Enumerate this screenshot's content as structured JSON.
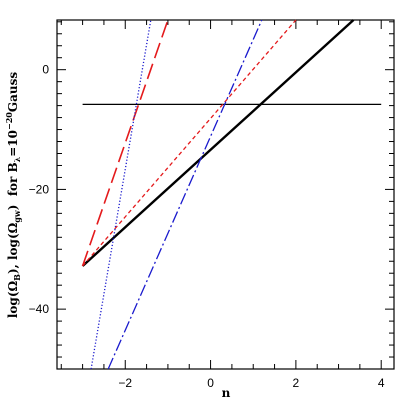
{
  "chart_data": {
    "type": "line",
    "title": "",
    "xlabel": "n",
    "ylabel_parts": {
      "part1": "log(Ω",
      "sub1": "B",
      "part2": "), log(Ω",
      "sub2": "gw",
      "part3": ")  for B",
      "sub3": "λ",
      "part4": "=10",
      "sup4": "−20",
      "part5": "Gauss"
    },
    "xlim": [
      -3.6,
      4.3
    ],
    "ylim": [
      -50,
      8.3
    ],
    "x_ticks": [
      -2,
      0,
      2,
      4
    ],
    "x_tick_labels": [
      "−2",
      "0",
      "2",
      "4"
    ],
    "y_ticks": [
      0,
      -20,
      -40
    ],
    "y_tick_labels": [
      "0",
      "−20",
      "−40"
    ],
    "grid": false,
    "series": [
      {
        "style": "solid-thick",
        "color": "#000000",
        "x": [
          -3.0,
          3.35
        ],
        "y": [
          -32.8,
          8.3
        ]
      },
      {
        "style": "solid-thin",
        "color": "#000000",
        "x": [
          -3.0,
          4.0
        ],
        "y": [
          -5.8,
          -5.8
        ]
      },
      {
        "style": "long-dash",
        "color": "#e41a1c",
        "x": [
          -3.0,
          -1.0
        ],
        "y": [
          -32.8,
          8.3
        ]
      },
      {
        "style": "short-dash",
        "color": "#e41a1c",
        "x": [
          -3.0,
          2.0
        ],
        "y": [
          -32.8,
          8.3
        ]
      },
      {
        "style": "dotted",
        "color": "#1a1acd",
        "x": [
          -2.8,
          -1.4
        ],
        "y": [
          -50.0,
          8.3
        ]
      },
      {
        "style": "dash-dot",
        "color": "#1a1acd",
        "x": [
          -2.4,
          1.2
        ],
        "y": [
          -50.0,
          8.3
        ]
      }
    ]
  }
}
